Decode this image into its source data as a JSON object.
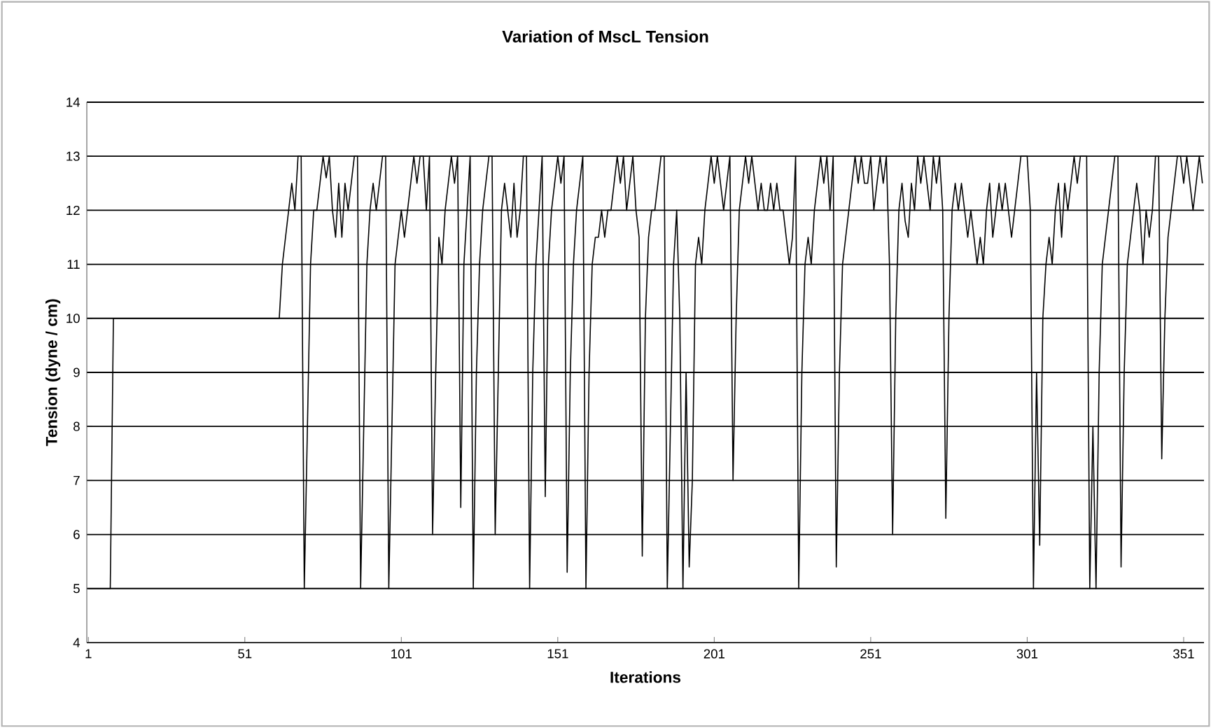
{
  "chart_data": {
    "type": "line",
    "title": "Variation of MscL Tension",
    "xlabel": "Iterations",
    "ylabel": "Tension (dyne / cm)",
    "xlim": [
      0.5,
      357.5
    ],
    "xticks": [
      1,
      51,
      101,
      151,
      201,
      251,
      301,
      351
    ],
    "ylim": [
      4,
      14
    ],
    "yticks": [
      4,
      5,
      6,
      7,
      8,
      9,
      10,
      11,
      12,
      13,
      14
    ],
    "grid": "y",
    "series": [
      {
        "color": "#000000",
        "x": [
          1,
          8,
          9,
          62,
          63,
          64,
          65,
          66,
          67,
          68,
          69,
          70,
          71,
          72,
          73,
          74,
          75,
          76,
          77,
          78,
          79,
          80,
          81,
          82,
          83,
          84,
          85,
          86,
          87,
          88,
          89,
          90,
          91,
          92,
          93,
          94,
          95,
          96,
          97,
          98,
          99,
          100,
          101,
          102,
          103,
          104,
          105,
          106,
          107,
          108,
          109,
          110,
          111,
          112,
          113,
          114,
          115,
          116,
          117,
          118,
          119,
          120,
          121,
          122,
          123,
          124,
          125,
          126,
          127,
          128,
          129,
          130,
          131,
          132,
          133,
          134,
          135,
          136,
          137,
          138,
          139,
          140,
          141,
          142,
          143,
          144,
          145,
          146,
          147,
          148,
          149,
          150,
          151,
          152,
          153,
          154,
          155,
          156,
          157,
          158,
          159,
          160,
          161,
          162,
          163,
          164,
          165,
          166,
          167,
          168,
          169,
          170,
          171,
          172,
          173,
          174,
          175,
          176,
          177,
          178,
          179,
          180,
          181,
          182,
          183,
          184,
          185,
          186,
          187,
          188,
          189,
          190,
          191,
          192,
          193,
          194,
          195,
          196,
          197,
          198,
          199,
          200,
          201,
          202,
          203,
          204,
          205,
          206,
          207,
          208,
          209,
          210,
          211,
          212,
          213,
          214,
          215,
          216,
          217,
          218,
          219,
          220,
          221,
          222,
          223,
          224,
          225,
          226,
          227,
          228,
          229,
          230,
          231,
          232,
          233,
          234,
          235,
          236,
          237,
          238,
          239,
          240,
          241,
          242,
          243,
          244,
          245,
          246,
          247,
          248,
          249,
          250,
          251,
          252,
          253,
          254,
          255,
          256,
          257,
          258,
          259,
          260,
          261,
          262,
          263,
          264,
          265,
          266,
          267,
          268,
          269,
          270,
          271,
          272,
          273,
          274,
          275,
          276,
          277,
          278,
          279,
          280,
          281,
          282,
          283,
          284,
          285,
          286,
          287,
          288,
          289,
          290,
          291,
          292,
          293,
          294,
          295,
          296,
          297,
          298,
          299,
          300,
          301,
          302,
          303,
          304,
          305,
          306,
          307,
          308,
          309,
          310,
          311,
          312,
          313,
          314,
          315,
          316,
          317,
          318,
          319,
          320,
          321,
          322,
          323,
          324,
          325,
          326,
          327,
          328,
          329,
          330,
          331,
          332,
          333,
          334,
          335,
          336,
          337,
          338,
          339,
          340,
          341,
          342,
          343,
          344,
          345,
          346,
          347,
          348,
          349,
          350,
          351,
          352,
          353,
          354,
          355,
          356,
          357
        ],
        "values": [
          5,
          5,
          10,
          10,
          11,
          11.5,
          12,
          12.5,
          12,
          13,
          13,
          5,
          8,
          11,
          12,
          12,
          12.5,
          13,
          12.6,
          13,
          12,
          11.5,
          12.5,
          11.5,
          12.5,
          12,
          12.5,
          13,
          13,
          5,
          8,
          11,
          12,
          12.5,
          12,
          12.5,
          13,
          13,
          5,
          8,
          11,
          11.5,
          12,
          11.5,
          12,
          12.5,
          13,
          12.5,
          13,
          13,
          12,
          13,
          6,
          9,
          11.5,
          11,
          12,
          12.5,
          13,
          12.5,
          13,
          6.5,
          11,
          12,
          13,
          5,
          9,
          11,
          12,
          12.5,
          13,
          13,
          6,
          9,
          12,
          12.5,
          12,
          11.5,
          12.5,
          11.5,
          12,
          13,
          13,
          5,
          9,
          11,
          12,
          13,
          6.7,
          11,
          12,
          12.5,
          13,
          12.5,
          13,
          5.3,
          9,
          11,
          12,
          12.5,
          13,
          5,
          9,
          11,
          11.5,
          11.5,
          12,
          11.5,
          12,
          12,
          12.5,
          13,
          12.5,
          13,
          12,
          12.5,
          13,
          12,
          11.5,
          5.6,
          10,
          11.5,
          12,
          12,
          12.5,
          13,
          13,
          5,
          8,
          11,
          12,
          10,
          5,
          9,
          5.4,
          7,
          11,
          11.5,
          11,
          12,
          12.5,
          13,
          12.5,
          13,
          12.5,
          12,
          12.5,
          13,
          7,
          10,
          12,
          12.5,
          13,
          12.5,
          13,
          12.5,
          12,
          12.5,
          12,
          12,
          12.5,
          12,
          12.5,
          12,
          12,
          11.5,
          11,
          11.5,
          13,
          5,
          9,
          11,
          11.5,
          11,
          12,
          12.5,
          13,
          12.5,
          13,
          12,
          13,
          5.4,
          9,
          11,
          11.5,
          12,
          12.5,
          13,
          12.5,
          13,
          12.5,
          12.5,
          13,
          12,
          12.5,
          13,
          12.5,
          13,
          11,
          6,
          10,
          12,
          12.5,
          11.8,
          11.5,
          12.5,
          12,
          13,
          12.5,
          13,
          12.5,
          12,
          13,
          12.5,
          13,
          12,
          6.3,
          10,
          12,
          12.5,
          12,
          12.5,
          12,
          11.5,
          12,
          11.5,
          11,
          11.5,
          11,
          12,
          12.5,
          11.5,
          12,
          12.5,
          12,
          12.5,
          12,
          11.5,
          12,
          12.5,
          13,
          13,
          13,
          12,
          5,
          9,
          5.8,
          10,
          11,
          11.5,
          11,
          12,
          12.5,
          11.5,
          12.5,
          12,
          12.5,
          13,
          12.5,
          13,
          13,
          13,
          5,
          8,
          5,
          9,
          11,
          11.5,
          12,
          12.5,
          13,
          13,
          5.4,
          9,
          11,
          11.5,
          12,
          12.5,
          12,
          11,
          12,
          11.5,
          12,
          13,
          13,
          7.4,
          10,
          11.5,
          12,
          12.5,
          13,
          13,
          12.5,
          13,
          12.5,
          12,
          12.5,
          13,
          12.5
        ]
      }
    ]
  }
}
